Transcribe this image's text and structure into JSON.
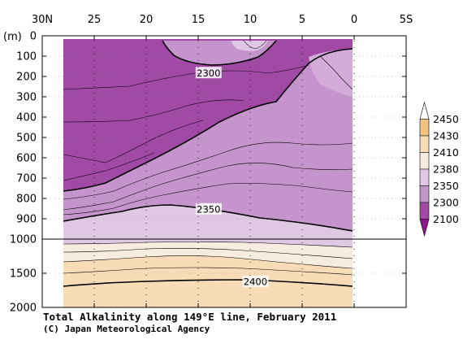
{
  "chart_data": {
    "type": "contour",
    "title": "Total Alkalinity along 149°E line, February 2011",
    "credit": "(C) Japan Meteorological Agency",
    "x_axis": {
      "ticks": [
        "30N",
        "25",
        "20",
        "15",
        "10",
        "5",
        "0",
        "5S"
      ],
      "values": [
        30,
        25,
        20,
        15,
        10,
        5,
        0,
        -5
      ],
      "range": [
        30,
        -5
      ]
    },
    "y_axis": {
      "unit": "(m)",
      "ticks": [
        "0",
        "100",
        "200",
        "300",
        "400",
        "500",
        "600",
        "700",
        "800",
        "900",
        "1000",
        "1500",
        "2000"
      ],
      "upper_range": [
        0,
        1000
      ],
      "lower_range": [
        1000,
        2000
      ]
    },
    "contour_labels": [
      {
        "text": "2300",
        "lat": 14,
        "depth": 185
      },
      {
        "text": "2350",
        "lat": 14,
        "depth": 855
      },
      {
        "text": "2400",
        "lat": 9.5,
        "depth": 1630
      }
    ],
    "colorbar": {
      "levels": [
        "2450",
        "2430",
        "2410",
        "2380",
        "2350",
        "2300",
        "2100"
      ],
      "colors": [
        "#ffffff",
        "#f3c27e",
        "#f7dcb5",
        "#f6ece0",
        "#e0c8e4",
        "#c594cc",
        "#a04aa5",
        "#8c188f"
      ]
    },
    "colors": {
      "deep_purple": "#a04aa5",
      "mid_purple": "#c594cc",
      "light_purple": "#e0c8e4",
      "light_cream": "#f6ece0",
      "cream": "#f7dcb5",
      "orange": "#f3c27e",
      "contour": "#000000"
    }
  }
}
